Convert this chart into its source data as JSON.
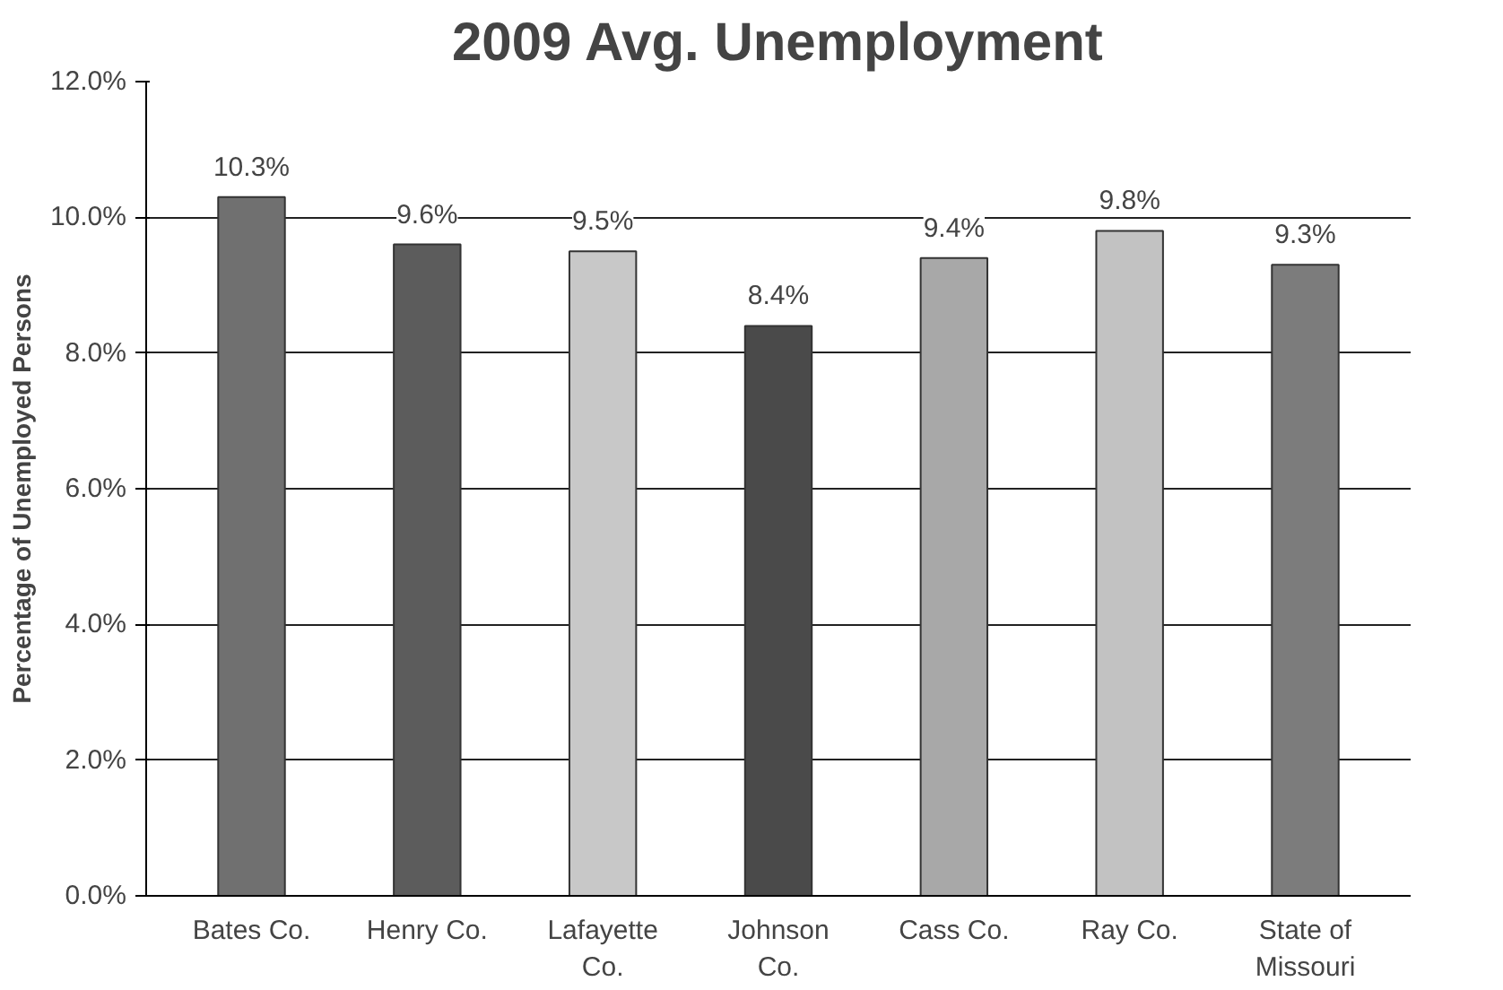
{
  "chart_data": {
    "type": "bar",
    "title": "2009 Avg. Unemployment",
    "ylabel": "Percentage of Unemployed Persons",
    "categories": [
      "Bates Co.",
      "Henry Co.",
      "Lafayette Co.",
      "Johnson Co.",
      "Cass Co.",
      "Ray Co.",
      "State of Missouri"
    ],
    "values": [
      10.3,
      9.6,
      9.5,
      8.4,
      9.4,
      9.8,
      9.3
    ],
    "colors": [
      "#707070",
      "#5c5c5c",
      "#c8c8c8",
      "#4a4a4a",
      "#a8a8a8",
      "#c2c2c2",
      "#7c7c7c"
    ],
    "value_labels": [
      "10.3%",
      "9.6%",
      "9.5%",
      "8.4%",
      "9.4%",
      "9.8%",
      "9.3%"
    ],
    "ylim": [
      0,
      12
    ],
    "yticks": [
      {
        "value": 0,
        "label": "0.0%"
      },
      {
        "value": 2,
        "label": "2.0%"
      },
      {
        "value": 4,
        "label": "4.0%"
      },
      {
        "value": 6,
        "label": "6.0%"
      },
      {
        "value": 8,
        "label": "8.0%"
      },
      {
        "value": 10,
        "label": "10.0%"
      },
      {
        "value": 12,
        "label": "12.0%"
      }
    ],
    "grid": "y"
  }
}
